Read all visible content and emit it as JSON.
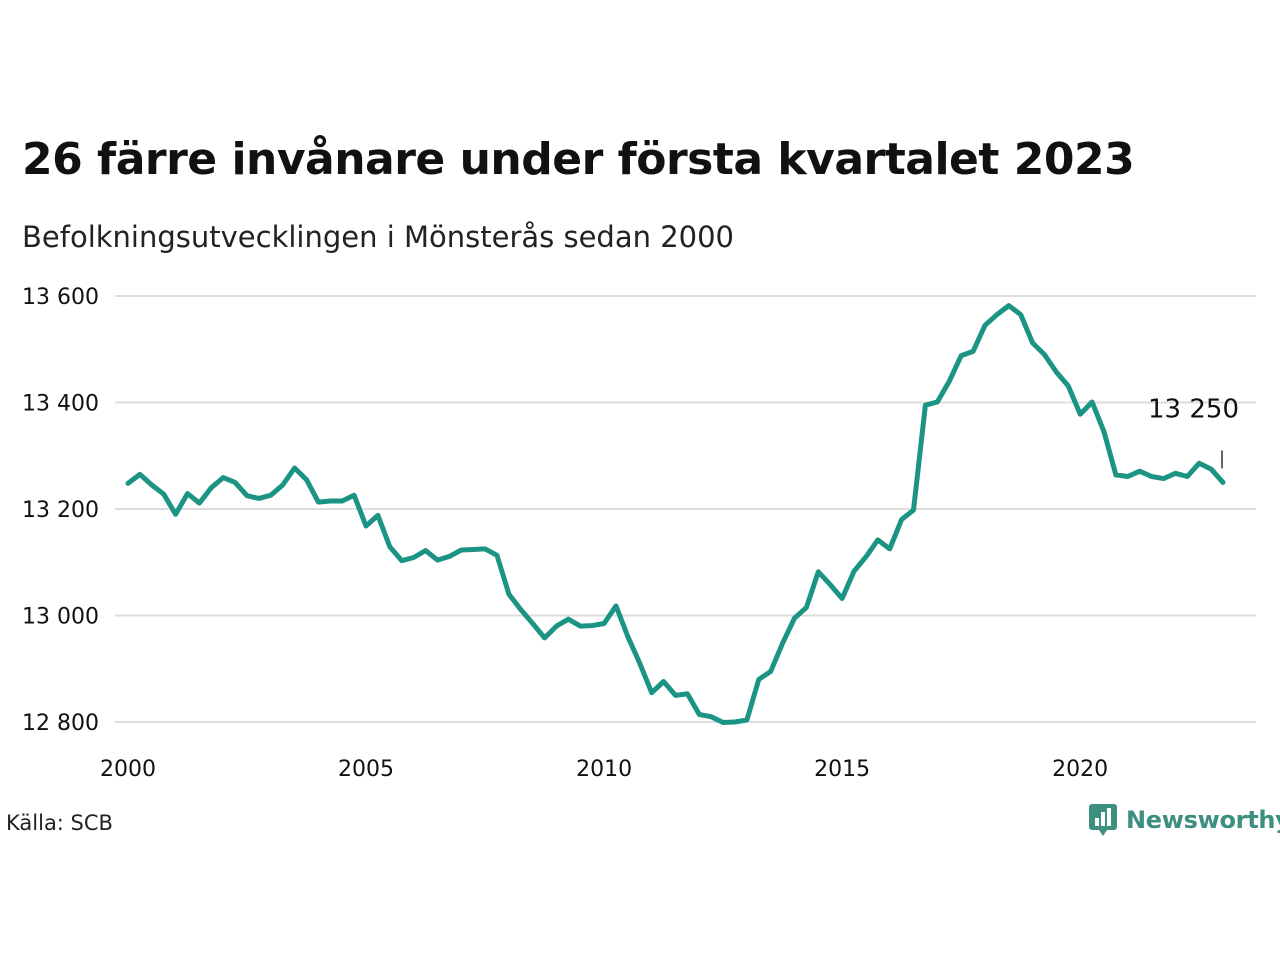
{
  "header": {
    "title": "26 färre invånare under första kvartalet 2023",
    "subtitle": "Befolkningsutvecklingen i Mönsterås sedan 2000"
  },
  "footer": {
    "source": "Källa: SCB",
    "brand": "Newsworthy",
    "brand_icon": "newsworthy-logo-icon"
  },
  "colors": {
    "line": "#1b9484",
    "grid": "#dddddd",
    "brand": "#3d8f7f"
  },
  "chart_data": {
    "type": "line",
    "title": "26 färre invånare under första kvartalet 2023",
    "subtitle": "Befolkningsutvecklingen i Mönsterås sedan 2000",
    "xlabel": "",
    "ylabel": "",
    "xlim": [
      2000,
      2024.3
    ],
    "ylim": [
      12800,
      13600
    ],
    "x_ticks": [
      2000,
      2005,
      2010,
      2015,
      2020
    ],
    "x_tick_labels": [
      "2000",
      "2005",
      "2010",
      "2015",
      "2020"
    ],
    "y_ticks": [
      12800,
      13000,
      13200,
      13400,
      13600
    ],
    "y_tick_labels": [
      "12 800",
      "13 000",
      "13 200",
      "13 400",
      "13 600"
    ],
    "grid": "horizontal",
    "legend": "none",
    "annotation": {
      "text": "13 250",
      "x": 2023.0,
      "y": 13250
    },
    "series": [
      {
        "x": [
          2000.0,
          2000.25,
          2000.5,
          2000.75,
          2001.0,
          2001.25,
          2001.5,
          2001.75,
          2002.0,
          2002.25,
          2002.5,
          2002.75,
          2003.0,
          2003.25,
          2003.5,
          2003.75,
          2004.0,
          2004.25,
          2004.5,
          2004.75,
          2005.0,
          2005.25,
          2005.5,
          2005.75,
          2006.0,
          2006.25,
          2006.5,
          2006.75,
          2007.0,
          2007.25,
          2007.5,
          2007.75,
          2008.0,
          2008.25,
          2008.5,
          2008.75,
          2009.0,
          2009.25,
          2009.5,
          2009.75,
          2010.0,
          2010.25,
          2010.5,
          2010.75,
          2011.0,
          2011.25,
          2011.5,
          2011.75,
          2012.0,
          2012.25,
          2012.5,
          2012.75,
          2013.0,
          2013.25,
          2013.5,
          2013.75,
          2014.0,
          2014.25,
          2014.5,
          2014.75,
          2015.0,
          2015.25,
          2015.5,
          2015.75,
          2016.0,
          2016.25,
          2016.5,
          2016.75,
          2017.0,
          2017.25,
          2017.5,
          2017.75,
          2018.0,
          2018.25,
          2018.5,
          2018.75,
          2019.0,
          2019.25,
          2019.5,
          2019.75,
          2020.0,
          2020.25,
          2020.5,
          2020.75,
          2021.0,
          2021.25,
          2021.5,
          2021.75,
          2022.0,
          2022.25,
          2022.5,
          2022.75,
          2023.0
        ],
        "values": [
          13248,
          13265,
          13245,
          13228,
          13190,
          13229,
          13211,
          13240,
          13259,
          13250,
          13225,
          13220,
          13226,
          13245,
          13277,
          13255,
          13213,
          13215,
          13215,
          13226,
          13168,
          13188,
          13129,
          13103,
          13109,
          13122,
          13104,
          13111,
          13123,
          13124,
          13125,
          13113,
          13040,
          13011,
          12985,
          12958,
          12980,
          12993,
          12980,
          12981,
          12985,
          13018,
          12960,
          12910,
          12855,
          12876,
          12850,
          12853,
          12814,
          12810,
          12799,
          12800,
          12804,
          12880,
          12895,
          12948,
          12995,
          13015,
          13082,
          13058,
          13032,
          13083,
          13110,
          13142,
          13125,
          13180,
          13198,
          13395,
          13401,
          13440,
          13488,
          13496,
          13545,
          13565,
          13582,
          13565,
          13512,
          13490,
          13457,
          13431,
          13378,
          13401,
          13345,
          13264,
          13261,
          13271,
          13261,
          13257,
          13267,
          13261,
          13286,
          13275,
          13250
        ]
      }
    ]
  }
}
